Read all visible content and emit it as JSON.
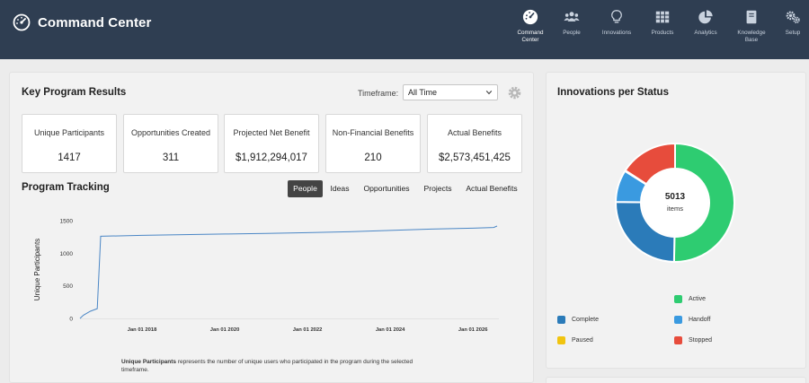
{
  "header": {
    "title": "Command Center",
    "nav": [
      {
        "label": "Command\nCenter",
        "icon": "dashboard-icon"
      },
      {
        "label": "People",
        "icon": "people-icon"
      },
      {
        "label": "Innovations",
        "icon": "lightbulb-icon"
      },
      {
        "label": "Products",
        "icon": "grid-icon"
      },
      {
        "label": "Analytics",
        "icon": "pie-chart-icon"
      },
      {
        "label": "Knowledge\nBase",
        "icon": "book-icon"
      },
      {
        "label": "Setup",
        "icon": "gears-icon"
      }
    ]
  },
  "results": {
    "title": "Key Program Results",
    "timeframe_label": "Timeframe:",
    "timeframe_value": "All Time",
    "kpis": [
      {
        "label": "Unique Participants",
        "value": "1417"
      },
      {
        "label": "Opportunities Created",
        "value": "311"
      },
      {
        "label": "Projected Net Benefit",
        "value": "$1,912,294,017"
      },
      {
        "label": "Non-Financial Benefits",
        "value": "210"
      },
      {
        "label": "Actual Benefits",
        "value": "$2,573,451,425"
      }
    ]
  },
  "tracking": {
    "title": "Program Tracking",
    "tabs": [
      "People",
      "Ideas",
      "Opportunities",
      "Projects",
      "Actual Benefits"
    ],
    "active_tab": "People",
    "footnote_bold": "Unique Participants",
    "footnote_rest": " represents the number of unique users who participated in the program during the selected timeframe."
  },
  "status": {
    "title": "Innovations per Status",
    "total": "5013",
    "total_label": "items"
  },
  "chart_data": [
    {
      "type": "line",
      "ylabel": "Unique Participants",
      "xlabel": "",
      "x_ticks": [
        "Jan 01 2018",
        "Jan 01 2020",
        "Jan 01 2022",
        "Jan 01 2024",
        "Jan 01 2026"
      ],
      "y_ticks": [
        0,
        500,
        1000,
        1500
      ],
      "ylim": [
        0,
        1500
      ],
      "color": "#4a86c5",
      "x": [
        "2016-07",
        "2016-08",
        "2016-10",
        "2016-12",
        "2017-01",
        "2018-01",
        "2019-01",
        "2020-01",
        "2021-01",
        "2022-01",
        "2023-01",
        "2024-01",
        "2025-01",
        "2026-01",
        "2026-07",
        "2026-08"
      ],
      "values": [
        0,
        50,
        110,
        150,
        1260,
        1275,
        1285,
        1295,
        1305,
        1315,
        1330,
        1350,
        1370,
        1385,
        1395,
        1417
      ]
    },
    {
      "type": "pie",
      "donut": true,
      "total": 5013,
      "series": [
        {
          "name": "Active",
          "value": 2520,
          "color": "#2ecc71"
        },
        {
          "name": "Complete",
          "value": 1250,
          "color": "#2b7bb9"
        },
        {
          "name": "Handoff",
          "value": 440,
          "color": "#3a9ae0"
        },
        {
          "name": "Paused",
          "value": 10,
          "color": "#f1c40f"
        },
        {
          "name": "Stopped",
          "value": 793,
          "color": "#e74c3c"
        }
      ],
      "legend": "bottom"
    }
  ]
}
